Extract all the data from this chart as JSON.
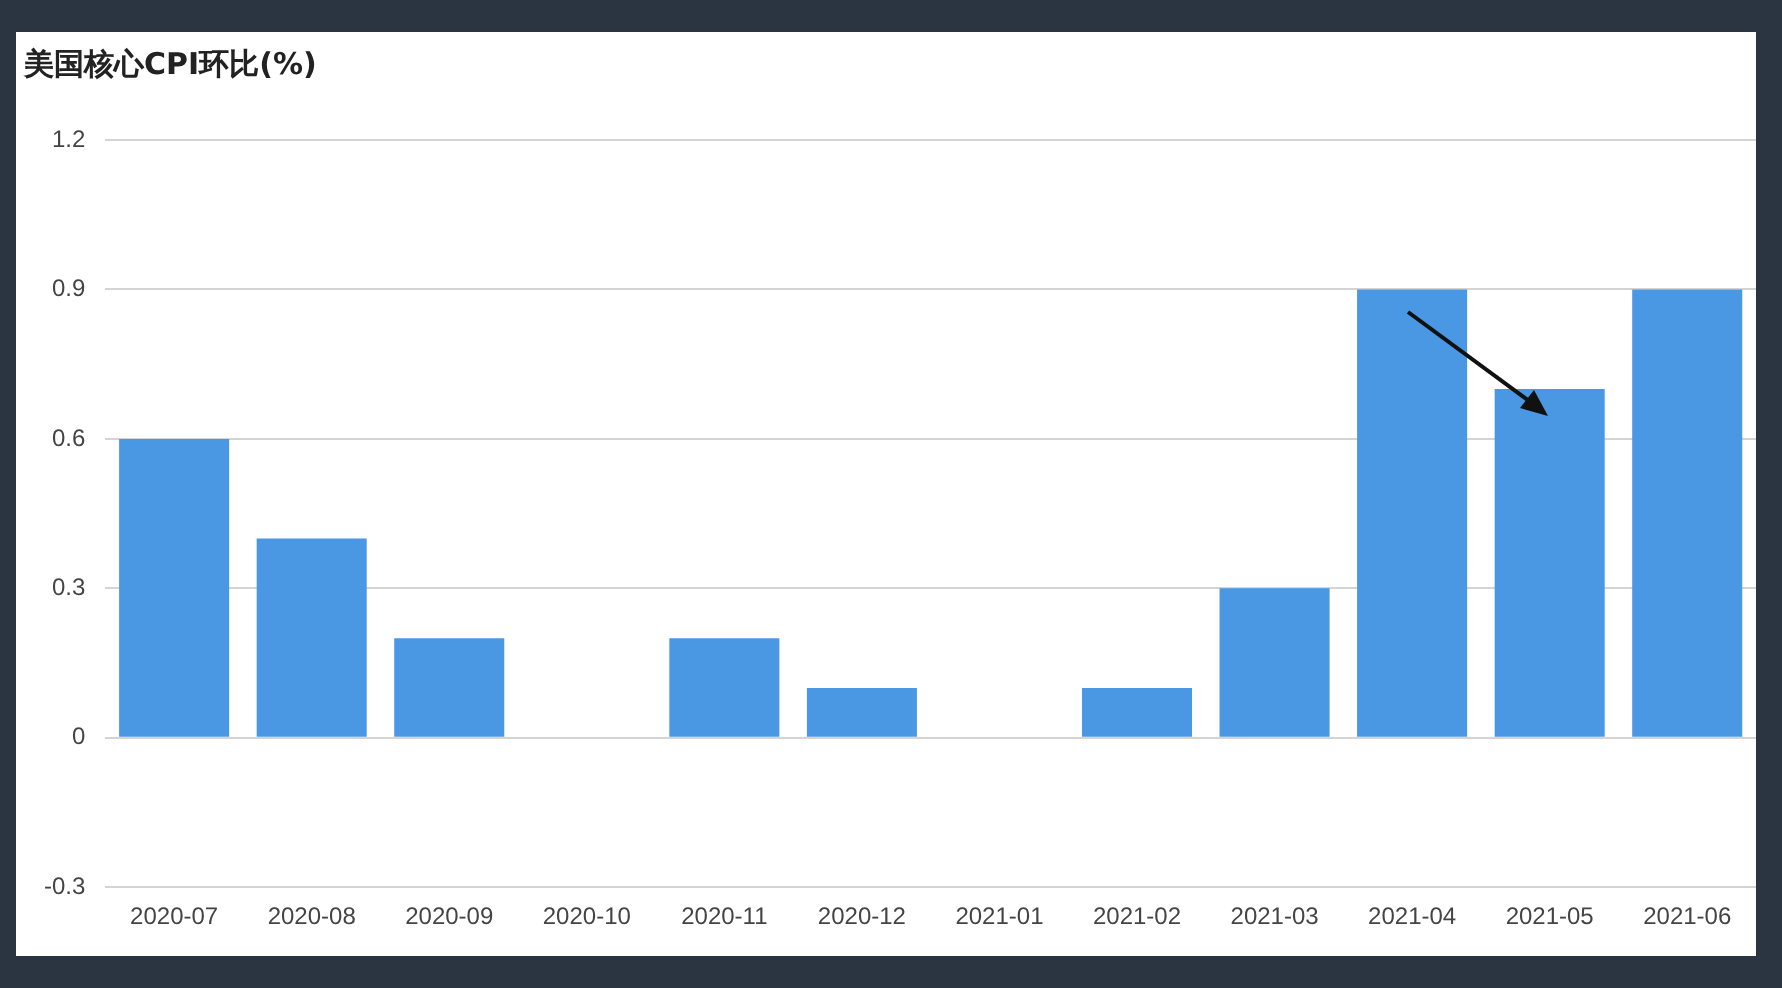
{
  "chart_data": {
    "type": "bar",
    "title": "美国核心CPI环比(%)",
    "categories": [
      "2020-07",
      "2020-08",
      "2020-09",
      "2020-10",
      "2020-11",
      "2020-12",
      "2021-01",
      "2021-02",
      "2021-03",
      "2021-04",
      "2021-05",
      "2021-06"
    ],
    "values": [
      0.6,
      0.4,
      0.2,
      0,
      0.2,
      0.1,
      0,
      0.1,
      0.3,
      0.9,
      0.7,
      0.9
    ],
    "color": "#4a97e4",
    "ylim": [
      -0.3,
      1.2
    ],
    "yticks": [
      -0.3,
      0,
      0.3,
      0.6,
      0.9,
      1.2
    ],
    "grid": "y",
    "legend": false
  }
}
